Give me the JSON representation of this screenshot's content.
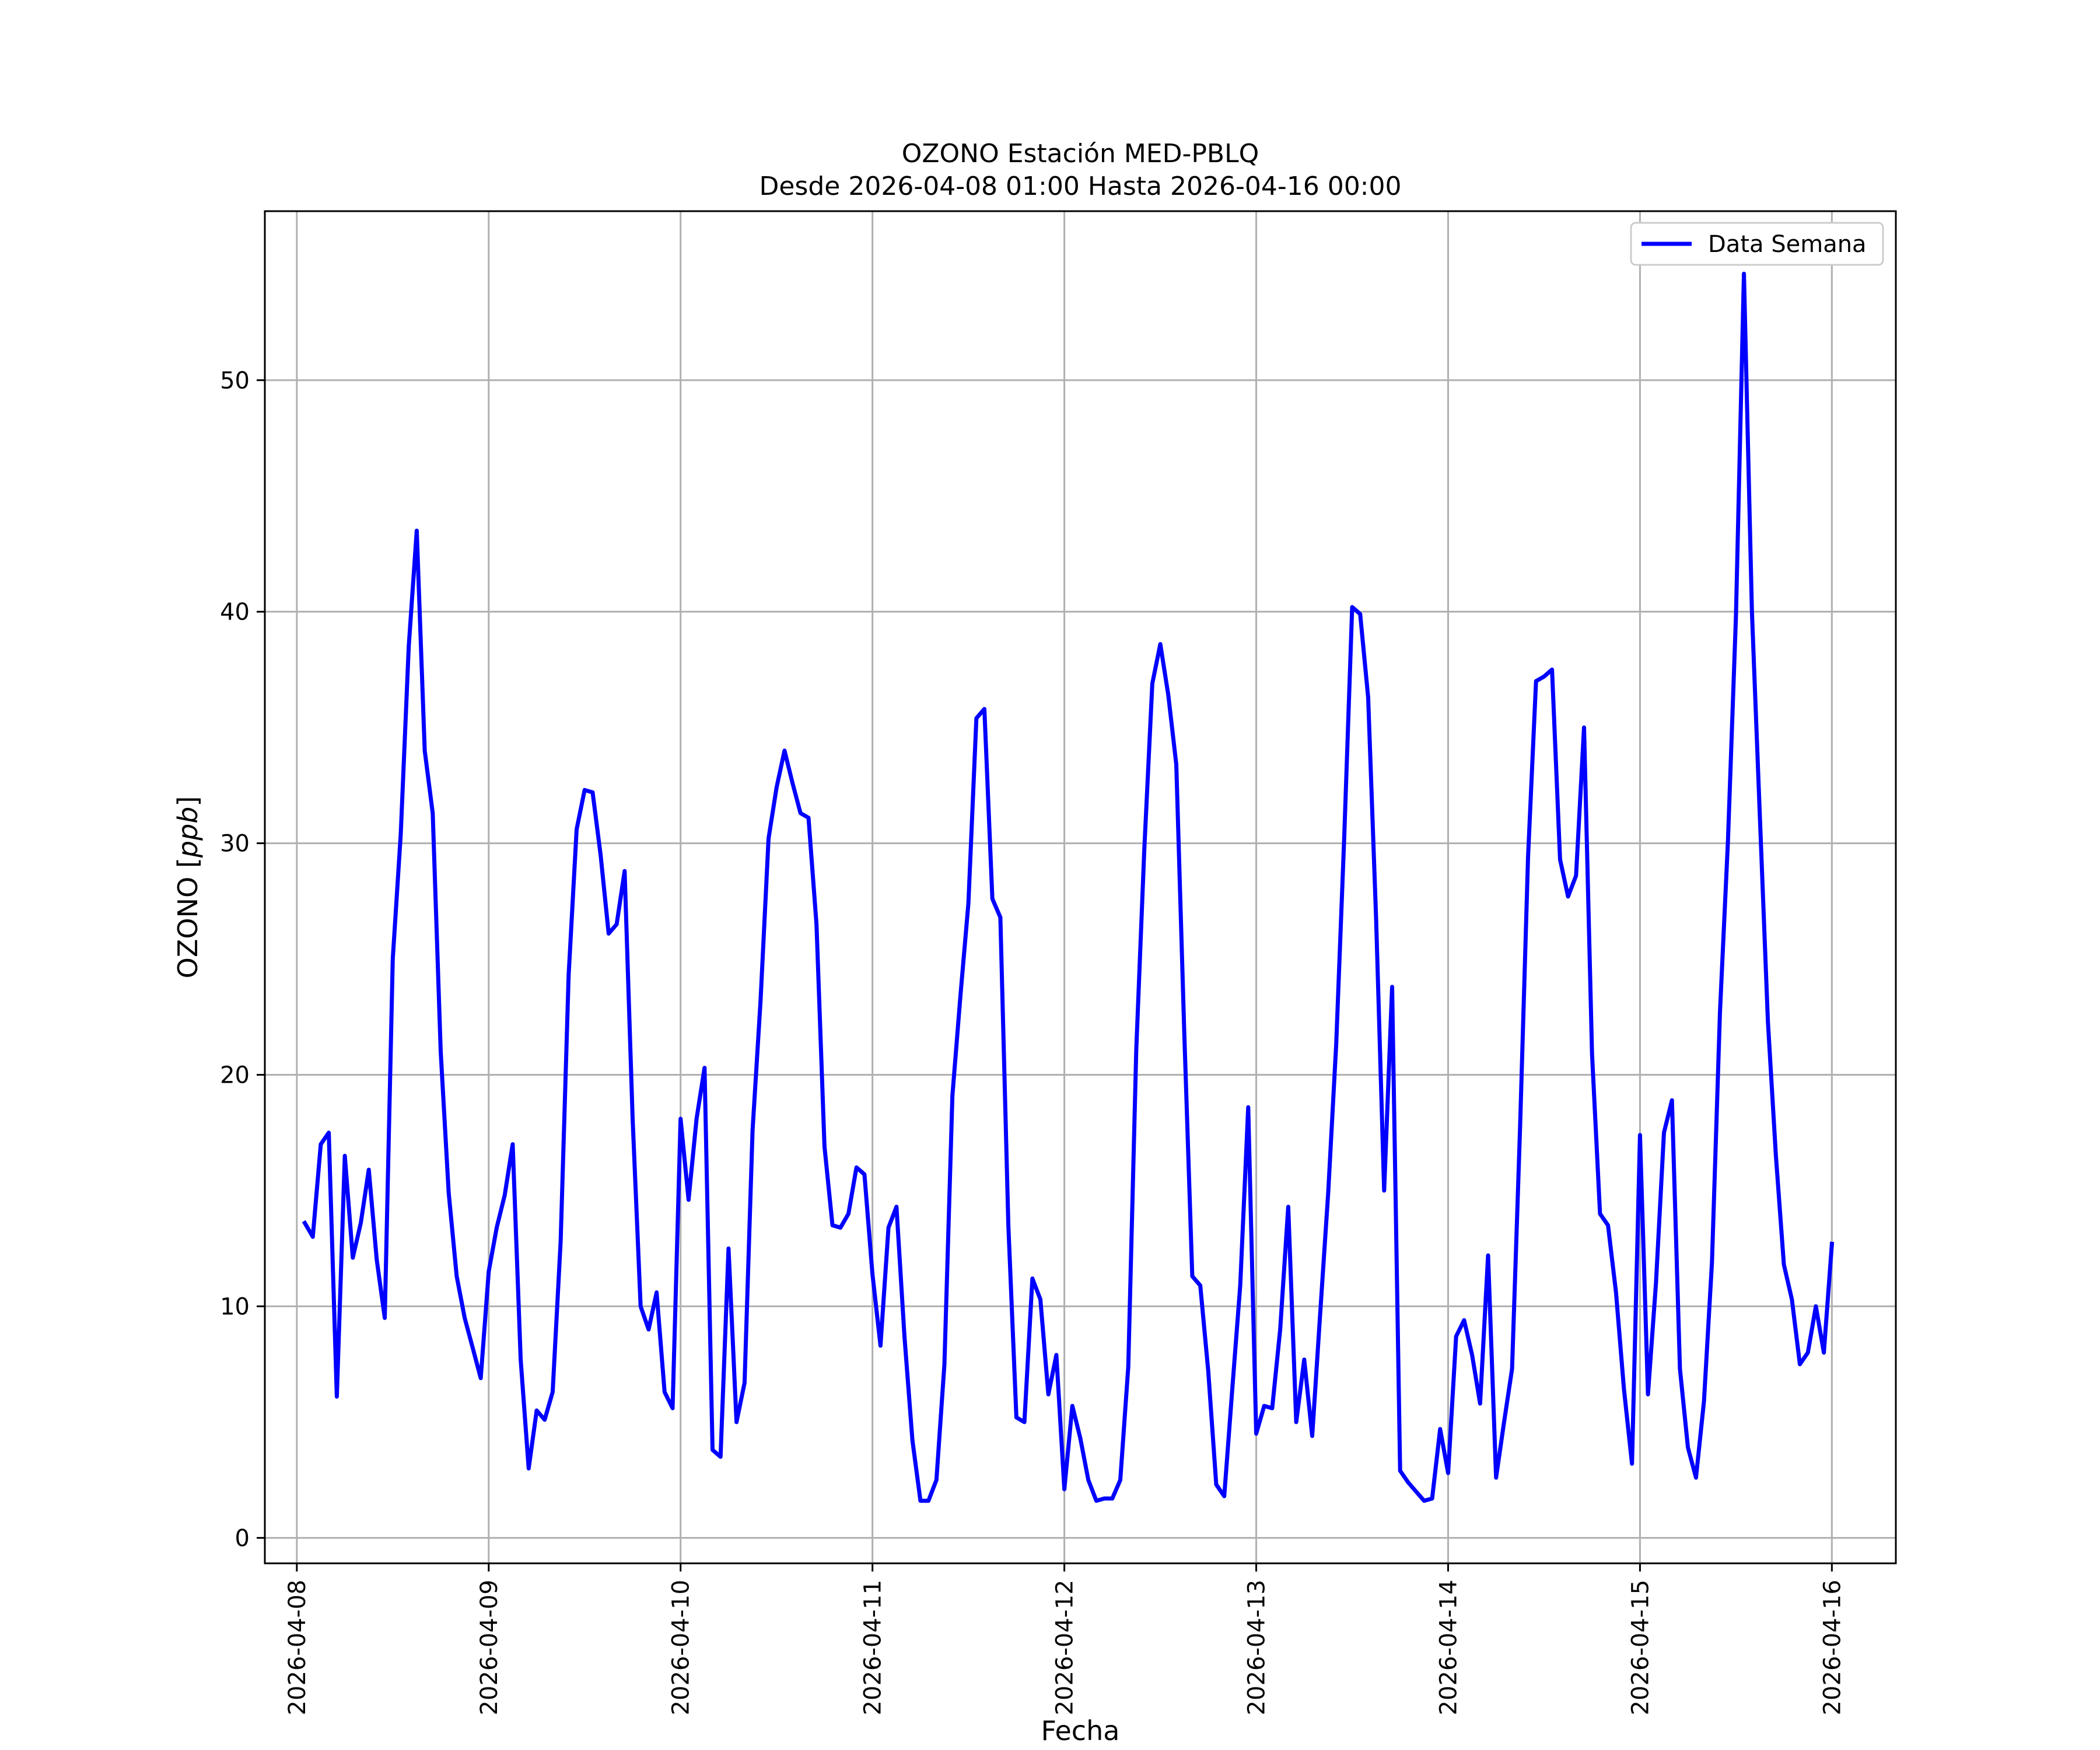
{
  "chart_data": {
    "type": "line",
    "title": "OZONO Estación MED-PBLQ",
    "subtitle": "Desde 2026-04-08 01:00 Hasta 2026-04-16 00:00",
    "xlabel": "Fecha",
    "ylabel": "OZONO [ppb]",
    "ylabel_text": "OZONO [",
    "ylabel_unit": "ppb",
    "ylabel_close": "]",
    "xlim": [
      "2026-04-07 20:00",
      "2026-04-16 08:00"
    ],
    "ylim": [
      -1.1,
      57.3
    ],
    "grid": true,
    "legend_position": "top-right",
    "x_ticks": [
      "2026-04-08",
      "2026-04-09",
      "2026-04-10",
      "2026-04-11",
      "2026-04-12",
      "2026-04-13",
      "2026-04-14",
      "2026-04-15",
      "2026-04-16"
    ],
    "y_ticks": [
      0,
      10,
      20,
      30,
      40,
      50
    ],
    "series": [
      {
        "name": "Data Semana",
        "color": "#0000ff",
        "x": [
          "2026-04-08 01:00",
          "2026-04-08 02:00",
          "2026-04-08 03:00",
          "2026-04-08 04:00",
          "2026-04-08 05:00",
          "2026-04-08 06:00",
          "2026-04-08 07:00",
          "2026-04-08 08:00",
          "2026-04-08 09:00",
          "2026-04-08 10:00",
          "2026-04-08 11:00",
          "2026-04-08 12:00",
          "2026-04-08 13:00",
          "2026-04-08 14:00",
          "2026-04-08 15:00",
          "2026-04-08 16:00",
          "2026-04-08 17:00",
          "2026-04-08 18:00",
          "2026-04-08 19:00",
          "2026-04-08 20:00",
          "2026-04-08 21:00",
          "2026-04-08 22:00",
          "2026-04-08 23:00",
          "2026-04-09 00:00",
          "2026-04-09 01:00",
          "2026-04-09 02:00",
          "2026-04-09 03:00",
          "2026-04-09 04:00",
          "2026-04-09 05:00",
          "2026-04-09 06:00",
          "2026-04-09 07:00",
          "2026-04-09 08:00",
          "2026-04-09 09:00",
          "2026-04-09 10:00",
          "2026-04-09 11:00",
          "2026-04-09 12:00",
          "2026-04-09 13:00",
          "2026-04-09 14:00",
          "2026-04-09 15:00",
          "2026-04-09 16:00",
          "2026-04-09 17:00",
          "2026-04-09 18:00",
          "2026-04-09 19:00",
          "2026-04-09 20:00",
          "2026-04-09 21:00",
          "2026-04-09 22:00",
          "2026-04-09 23:00",
          "2026-04-10 00:00",
          "2026-04-10 01:00",
          "2026-04-10 02:00",
          "2026-04-10 03:00",
          "2026-04-10 04:00",
          "2026-04-10 05:00",
          "2026-04-10 06:00",
          "2026-04-10 07:00",
          "2026-04-10 08:00",
          "2026-04-10 09:00",
          "2026-04-10 10:00",
          "2026-04-10 11:00",
          "2026-04-10 12:00",
          "2026-04-10 13:00",
          "2026-04-10 14:00",
          "2026-04-10 15:00",
          "2026-04-10 16:00",
          "2026-04-10 17:00",
          "2026-04-10 18:00",
          "2026-04-10 19:00",
          "2026-04-10 20:00",
          "2026-04-10 21:00",
          "2026-04-10 22:00",
          "2026-04-10 23:00",
          "2026-04-11 00:00",
          "2026-04-11 01:00",
          "2026-04-11 02:00",
          "2026-04-11 03:00",
          "2026-04-11 04:00",
          "2026-04-11 05:00",
          "2026-04-11 06:00",
          "2026-04-11 07:00",
          "2026-04-11 08:00",
          "2026-04-11 09:00",
          "2026-04-11 10:00",
          "2026-04-11 11:00",
          "2026-04-11 12:00",
          "2026-04-11 13:00",
          "2026-04-11 14:00",
          "2026-04-11 15:00",
          "2026-04-11 16:00",
          "2026-04-11 17:00",
          "2026-04-11 18:00",
          "2026-04-11 19:00",
          "2026-04-11 20:00",
          "2026-04-11 21:00",
          "2026-04-11 22:00",
          "2026-04-11 23:00",
          "2026-04-12 00:00",
          "2026-04-12 01:00",
          "2026-04-12 02:00",
          "2026-04-12 03:00",
          "2026-04-12 04:00",
          "2026-04-12 05:00",
          "2026-04-12 06:00",
          "2026-04-12 07:00",
          "2026-04-12 08:00",
          "2026-04-12 09:00",
          "2026-04-12 10:00",
          "2026-04-12 11:00",
          "2026-04-12 12:00",
          "2026-04-12 13:00",
          "2026-04-12 14:00",
          "2026-04-12 15:00",
          "2026-04-12 16:00",
          "2026-04-12 17:00",
          "2026-04-12 18:00",
          "2026-04-12 19:00",
          "2026-04-12 20:00",
          "2026-04-12 21:00",
          "2026-04-12 22:00",
          "2026-04-12 23:00",
          "2026-04-13 00:00",
          "2026-04-13 01:00",
          "2026-04-13 02:00",
          "2026-04-13 03:00",
          "2026-04-13 04:00",
          "2026-04-13 05:00",
          "2026-04-13 06:00",
          "2026-04-13 07:00",
          "2026-04-13 08:00",
          "2026-04-13 09:00",
          "2026-04-13 10:00",
          "2026-04-13 11:00",
          "2026-04-13 12:00",
          "2026-04-13 13:00",
          "2026-04-13 14:00",
          "2026-04-13 15:00",
          "2026-04-13 16:00",
          "2026-04-13 17:00",
          "2026-04-13 18:00",
          "2026-04-13 19:00",
          "2026-04-13 20:00",
          "2026-04-13 21:00",
          "2026-04-13 22:00",
          "2026-04-13 23:00",
          "2026-04-14 00:00",
          "2026-04-14 01:00",
          "2026-04-14 02:00",
          "2026-04-14 03:00",
          "2026-04-14 04:00",
          "2026-04-14 05:00",
          "2026-04-14 06:00",
          "2026-04-14 07:00",
          "2026-04-14 08:00",
          "2026-04-14 09:00",
          "2026-04-14 10:00",
          "2026-04-14 11:00",
          "2026-04-14 12:00",
          "2026-04-14 13:00",
          "2026-04-14 14:00",
          "2026-04-14 15:00",
          "2026-04-14 16:00",
          "2026-04-14 17:00",
          "2026-04-14 18:00",
          "2026-04-14 19:00",
          "2026-04-14 20:00",
          "2026-04-14 21:00",
          "2026-04-14 22:00",
          "2026-04-14 23:00",
          "2026-04-15 00:00",
          "2026-04-15 01:00",
          "2026-04-15 02:00",
          "2026-04-15 03:00",
          "2026-04-15 04:00",
          "2026-04-15 05:00",
          "2026-04-15 06:00",
          "2026-04-15 07:00",
          "2026-04-15 08:00",
          "2026-04-15 09:00",
          "2026-04-15 10:00",
          "2026-04-15 11:00",
          "2026-04-15 12:00",
          "2026-04-15 13:00",
          "2026-04-15 14:00",
          "2026-04-15 15:00",
          "2026-04-15 16:00",
          "2026-04-15 17:00",
          "2026-04-15 18:00",
          "2026-04-15 19:00",
          "2026-04-15 20:00",
          "2026-04-15 21:00",
          "2026-04-15 22:00",
          "2026-04-15 23:00",
          "2026-04-16 00:00"
        ],
        "values": [
          13.6,
          13.0,
          17.0,
          17.5,
          6.1,
          16.5,
          12.1,
          13.6,
          15.9,
          12.0,
          9.5,
          25.0,
          30.4,
          38.5,
          43.5,
          34.0,
          31.3,
          21.0,
          14.9,
          11.3,
          9.5,
          8.2,
          6.9,
          11.5,
          13.4,
          14.8,
          17.0,
          7.7,
          3.0,
          5.5,
          5.1,
          6.3,
          12.8,
          24.3,
          30.6,
          32.3,
          32.2,
          29.5,
          26.1,
          26.5,
          28.8,
          18.1,
          10.0,
          9.0,
          10.6,
          6.3,
          5.6,
          18.1,
          14.6,
          18.1,
          20.3,
          3.8,
          3.5,
          12.5,
          5.0,
          6.7,
          17.6,
          23.2,
          30.2,
          32.4,
          34.0,
          32.6,
          31.3,
          31.1,
          26.5,
          16.9,
          13.5,
          13.4,
          14.0,
          16.0,
          15.7,
          11.4,
          8.3,
          13.4,
          14.3,
          8.7,
          4.2,
          1.6,
          1.6,
          2.5,
          7.5,
          19.1,
          23.4,
          27.4,
          35.4,
          35.8,
          27.6,
          26.8,
          13.5,
          5.2,
          5.0,
          11.2,
          10.3,
          6.2,
          7.9,
          2.1,
          5.7,
          4.3,
          2.5,
          1.6,
          1.7,
          1.7,
          2.5,
          7.4,
          21.1,
          29.7,
          36.9,
          38.6,
          36.4,
          33.4,
          21.8,
          11.3,
          10.9,
          7.2,
          2.3,
          1.8,
          6.4,
          10.9,
          18.6,
          4.5,
          5.7,
          5.6,
          9.0,
          14.3,
          5.0,
          7.7,
          4.4,
          9.7,
          14.9,
          21.3,
          30.2,
          40.2,
          39.9,
          36.3,
          26.7,
          15.0,
          23.8,
          2.9,
          2.4,
          2.0,
          1.6,
          1.7,
          4.7,
          2.8,
          8.7,
          9.4,
          7.9,
          5.8,
          12.2,
          2.6,
          5.0,
          7.3,
          17.7,
          29.4,
          37.0,
          37.2,
          37.5,
          29.3,
          27.7,
          28.6,
          35.0,
          20.9,
          14.0,
          13.5,
          10.6,
          6.4,
          3.2,
          17.4,
          6.2,
          11.0,
          17.5,
          18.9,
          7.3,
          3.9,
          2.6,
          5.9,
          11.9,
          22.7,
          30.1,
          39.8,
          54.6,
          40.0,
          31.1,
          22.3,
          16.5,
          11.8,
          10.3,
          7.5,
          8.0,
          10.0,
          8.0,
          12.7
        ]
      }
    ]
  }
}
